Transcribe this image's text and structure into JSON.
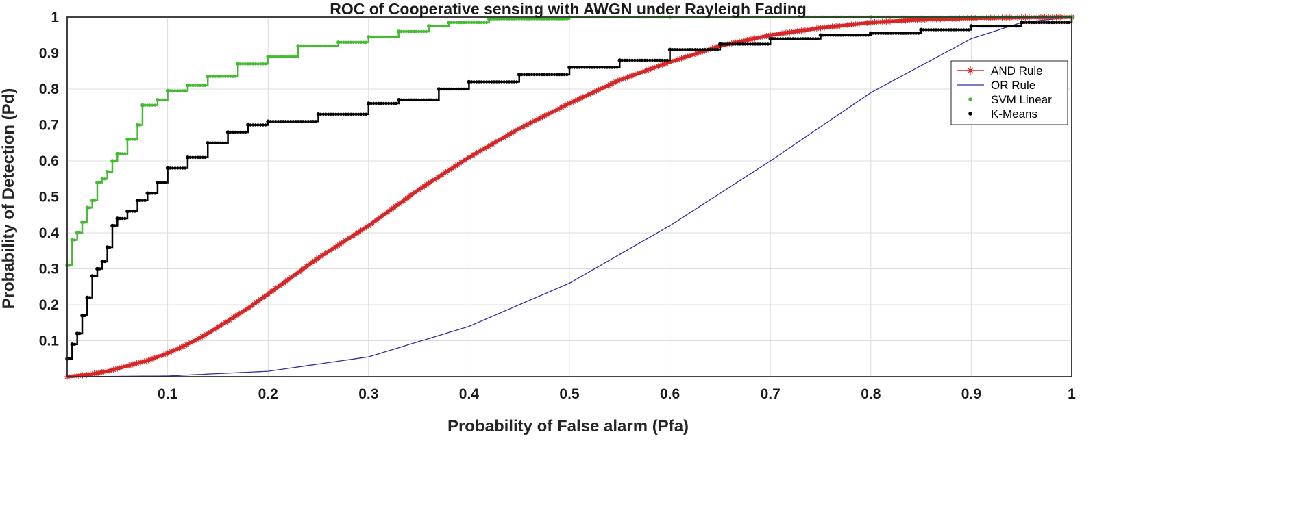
{
  "chart_data": {
    "type": "line",
    "title": "ROC of Cooperative sensing with AWGN under Rayleigh Fading",
    "xlabel": "Probability of False alarm (Pfa)",
    "ylabel": "Probability of Detection (Pd)",
    "xlim": [
      0,
      1
    ],
    "ylim": [
      0,
      1
    ],
    "grid": true,
    "legend_position": "right",
    "x_ticks": [
      0.1,
      0.2,
      0.3,
      0.4,
      0.5,
      0.6,
      0.7,
      0.8,
      0.9,
      1
    ],
    "x_tick_labels": [
      "0.1",
      "0.2",
      "0.3",
      "0.4",
      "0.5",
      "0.6",
      "0.7",
      "0.8",
      "0.9",
      "1"
    ],
    "y_ticks": [
      0.1,
      0.2,
      0.3,
      0.4,
      0.5,
      0.6,
      0.7,
      0.8,
      0.9,
      1
    ],
    "y_tick_labels": [
      "0.1",
      "0.2",
      "0.3",
      "0.4",
      "0.5",
      "0.6",
      "0.7",
      "0.8",
      "0.9",
      "1"
    ],
    "series": [
      {
        "name": "AND Rule",
        "color": "#d62728",
        "marker": "star",
        "x": [
          0,
          0.02,
          0.04,
          0.06,
          0.08,
          0.1,
          0.12,
          0.14,
          0.16,
          0.18,
          0.2,
          0.25,
          0.3,
          0.35,
          0.4,
          0.45,
          0.5,
          0.55,
          0.6,
          0.65,
          0.7,
          0.75,
          0.8,
          0.85,
          0.9,
          0.95,
          1
        ],
        "y": [
          0,
          0.005,
          0.015,
          0.03,
          0.045,
          0.065,
          0.09,
          0.12,
          0.155,
          0.19,
          0.23,
          0.33,
          0.42,
          0.52,
          0.61,
          0.69,
          0.76,
          0.825,
          0.875,
          0.92,
          0.95,
          0.97,
          0.985,
          0.993,
          0.997,
          0.999,
          1
        ]
      },
      {
        "name": "OR Rule",
        "color": "#3030a0",
        "marker": "none",
        "x": [
          0,
          0.1,
          0.2,
          0.3,
          0.4,
          0.5,
          0.6,
          0.7,
          0.8,
          0.9,
          0.95,
          1
        ],
        "y": [
          0,
          0.002,
          0.015,
          0.055,
          0.14,
          0.26,
          0.42,
          0.6,
          0.79,
          0.94,
          0.985,
          1
        ]
      },
      {
        "name": "SVM Linear",
        "color": "#44bb33",
        "marker": "dot",
        "x": [
          0,
          0.005,
          0.01,
          0.015,
          0.02,
          0.025,
          0.03,
          0.035,
          0.04,
          0.045,
          0.05,
          0.06,
          0.07,
          0.075,
          0.09,
          0.1,
          0.12,
          0.14,
          0.17,
          0.2,
          0.23,
          0.27,
          0.3,
          0.33,
          0.36,
          0.38,
          0.42,
          0.5,
          0.6,
          0.8,
          1
        ],
        "y": [
          0.31,
          0.38,
          0.4,
          0.43,
          0.47,
          0.49,
          0.54,
          0.55,
          0.57,
          0.6,
          0.62,
          0.66,
          0.7,
          0.755,
          0.77,
          0.795,
          0.81,
          0.835,
          0.87,
          0.89,
          0.92,
          0.93,
          0.945,
          0.96,
          0.975,
          0.985,
          0.995,
          1,
          1,
          1,
          1
        ]
      },
      {
        "name": "K-Means",
        "color": "#000000",
        "marker": "dot",
        "x": [
          0,
          0.005,
          0.01,
          0.015,
          0.02,
          0.025,
          0.03,
          0.035,
          0.04,
          0.045,
          0.05,
          0.06,
          0.07,
          0.08,
          0.09,
          0.1,
          0.12,
          0.14,
          0.16,
          0.18,
          0.2,
          0.25,
          0.3,
          0.33,
          0.37,
          0.4,
          0.45,
          0.5,
          0.55,
          0.6,
          0.65,
          0.7,
          0.75,
          0.8,
          0.85,
          0.9,
          0.95,
          1
        ],
        "y": [
          0.05,
          0.09,
          0.12,
          0.17,
          0.22,
          0.28,
          0.3,
          0.32,
          0.36,
          0.42,
          0.44,
          0.46,
          0.49,
          0.51,
          0.54,
          0.58,
          0.61,
          0.65,
          0.68,
          0.7,
          0.71,
          0.73,
          0.76,
          0.77,
          0.8,
          0.82,
          0.84,
          0.86,
          0.88,
          0.91,
          0.925,
          0.94,
          0.95,
          0.955,
          0.965,
          0.975,
          0.985,
          1
        ]
      }
    ]
  }
}
